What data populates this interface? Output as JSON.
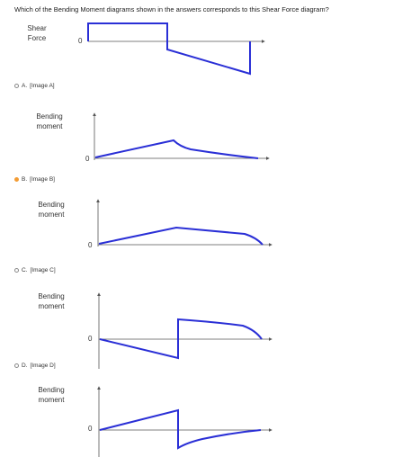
{
  "question": "Which of the Bending Moment diagrams shown in the answers corresponds to this Shear Force diagram?",
  "shear": {
    "label_line1": "Shear",
    "label_line2": "Force",
    "zero": "0"
  },
  "options": [
    {
      "letter": "A.",
      "text": "[Image A]",
      "selected": false,
      "label_line1": "Bending",
      "label_line2": "moment",
      "zero": "0"
    },
    {
      "letter": "B.",
      "text": "[Image B]",
      "selected": true,
      "label_line1": "Bending",
      "label_line2": "moment",
      "zero": "0"
    },
    {
      "letter": "C.",
      "text": "[Image C]",
      "selected": false,
      "label_line1": "Bending",
      "label_line2": "moment",
      "zero": "0"
    },
    {
      "letter": "D.",
      "text": "[Image D]",
      "selected": false,
      "label_line1": "Bending",
      "label_line2": "moment",
      "zero": "0"
    }
  ],
  "colors": {
    "curve": "#2a2fd6",
    "axis": "#555555",
    "selected": "#f39c34"
  }
}
